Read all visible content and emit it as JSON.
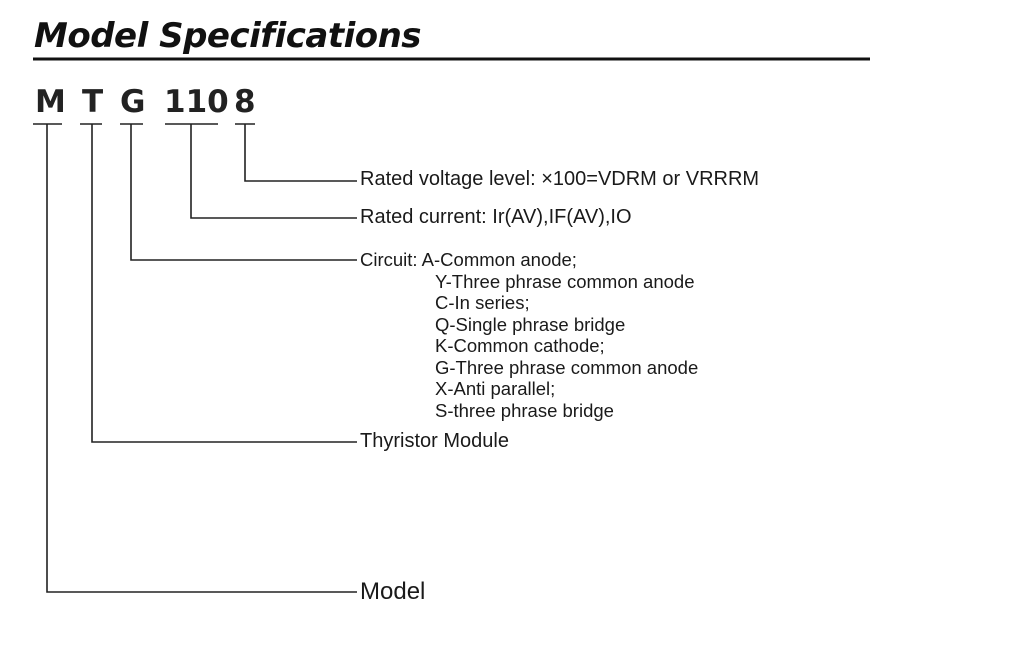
{
  "title": "Model Specifications",
  "code": {
    "m": "M",
    "t": "T",
    "g": "G",
    "current": "110",
    "voltage": "8"
  },
  "labels": {
    "voltage": "Rated voltage level: ×100=VDRM or VRRRM",
    "current": "Rated current: Ir(AV),IF(AV),IO",
    "circuit_head": "Circuit: A-Common anode;",
    "circuit_items": [
      "Y-Three phrase common anode",
      "C-In series;",
      "Q-Single phrase bridge",
      "K-Common cathode;",
      "G-Three phrase common anode",
      "X-Anti parallel;",
      "S-three phrase bridge"
    ],
    "type": "Thyristor Module",
    "model": "Model"
  }
}
